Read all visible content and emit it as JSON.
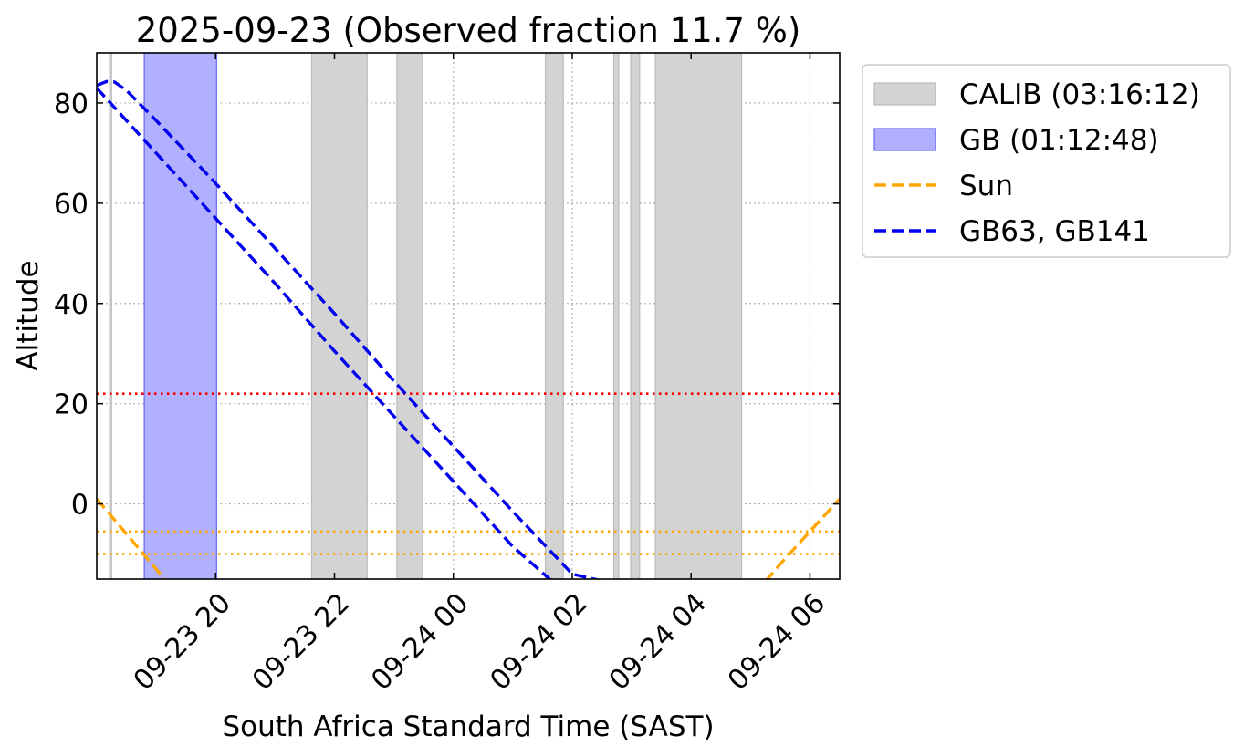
{
  "chart_data": {
    "type": "line",
    "title": "2025-09-23 (Observed fraction 11.7 %)",
    "xlabel": "South Africa Standard Time (SAST)",
    "ylabel": "Altitude",
    "x_unit": "datetime SAST",
    "xlim": [
      "2025-09-23 18:00",
      "2025-09-24 06:30"
    ],
    "ylim": [
      -15,
      90
    ],
    "x_ticks": [
      {
        "t": "2025-09-23 20:00",
        "label": "09-23 20"
      },
      {
        "t": "2025-09-23 22:00",
        "label": "09-23 22"
      },
      {
        "t": "2025-09-24 00:00",
        "label": "09-24 00"
      },
      {
        "t": "2025-09-24 02:00",
        "label": "09-24 02"
      },
      {
        "t": "2025-09-24 04:00",
        "label": "09-24 04"
      },
      {
        "t": "2025-09-24 06:00",
        "label": "09-24 06"
      }
    ],
    "y_ticks": [
      0,
      20,
      40,
      60,
      80
    ],
    "grid": true,
    "legend_position": "outside-top-right",
    "spans": [
      {
        "group": "CALIB",
        "start": "2025-09-23 18:13",
        "end": "2025-09-23 18:15"
      },
      {
        "group": "GB",
        "start": "2025-09-23 18:48",
        "end": "2025-09-23 20:01"
      },
      {
        "group": "CALIB",
        "start": "2025-09-23 21:37",
        "end": "2025-09-23 22:33"
      },
      {
        "group": "CALIB",
        "start": "2025-09-23 23:03",
        "end": "2025-09-23 23:29"
      },
      {
        "group": "CALIB",
        "start": "2025-09-24 01:33",
        "end": "2025-09-24 01:51"
      },
      {
        "group": "CALIB",
        "start": "2025-09-24 02:42",
        "end": "2025-09-24 02:47"
      },
      {
        "group": "CALIB",
        "start": "2025-09-24 02:59",
        "end": "2025-09-24 03:08"
      },
      {
        "group": "CALIB",
        "start": "2025-09-24 03:24",
        "end": "2025-09-24 04:51"
      }
    ],
    "series": [
      {
        "name": "Sun",
        "style": "dashed",
        "color": "#ffa500",
        "points": [
          [
            "2025-09-23 18:00",
            1
          ],
          [
            "2025-09-23 18:30",
            -6
          ],
          [
            "2025-09-23 19:00",
            -13
          ],
          [
            "2025-09-23 19:10",
            -15.5
          ]
        ]
      },
      {
        "name": "Sun",
        "style": "dashed",
        "color": "#ffa500",
        "legend": false,
        "points": [
          [
            "2025-09-24 05:15",
            -15.5
          ],
          [
            "2025-09-24 05:30",
            -12
          ],
          [
            "2025-09-24 06:00",
            -5.5
          ],
          [
            "2025-09-24 06:30",
            1
          ]
        ]
      },
      {
        "name": "GB63, GB141",
        "style": "dashed",
        "color": "#0000ee",
        "points": [
          [
            "2025-09-23 18:00",
            83.5
          ],
          [
            "2025-09-23 18:10",
            84.3
          ],
          [
            "2025-09-23 18:18",
            84.2
          ],
          [
            "2025-09-23 18:30",
            82.5
          ],
          [
            "2025-09-23 19:00",
            76.5
          ],
          [
            "2025-09-23 20:00",
            64
          ],
          [
            "2025-09-23 21:00",
            51
          ],
          [
            "2025-09-23 22:00",
            38
          ],
          [
            "2025-09-23 23:00",
            24.5
          ],
          [
            "2025-09-24 00:00",
            11.5
          ],
          [
            "2025-09-24 01:00",
            -1.5
          ],
          [
            "2025-09-24 02:00",
            -14
          ],
          [
            "2025-09-24 02:33",
            -15.5
          ]
        ]
      },
      {
        "name": "GB63, GB141",
        "style": "dashed",
        "color": "#0000ee",
        "legend": false,
        "points": [
          [
            "2025-09-23 18:00",
            83
          ],
          [
            "2025-09-23 19:00",
            70
          ],
          [
            "2025-09-23 20:00",
            57
          ],
          [
            "2025-09-23 21:00",
            44
          ],
          [
            "2025-09-23 22:00",
            30.5
          ],
          [
            "2025-09-23 23:00",
            17.5
          ],
          [
            "2025-09-24 00:00",
            4.5
          ],
          [
            "2025-09-24 01:00",
            -8.5
          ],
          [
            "2025-09-24 01:40",
            -15.5
          ]
        ]
      }
    ],
    "hlines": [
      {
        "y": 22,
        "color": "#ff0000",
        "style": "dotted"
      },
      {
        "y": -5.5,
        "color": "#ffa500",
        "style": "dotted"
      },
      {
        "y": -10,
        "color": "#ffa500",
        "style": "dotted"
      }
    ],
    "legend": [
      {
        "label": "CALIB (03:16:12)",
        "kind": "patch",
        "color": "#d3d3d3"
      },
      {
        "label": "GB (01:12:48)",
        "kind": "patch",
        "color": "#b0b0ff"
      },
      {
        "label": "Sun",
        "kind": "line",
        "color": "#ffa500"
      },
      {
        "label": "GB63, GB141",
        "kind": "line",
        "color": "#0000ee"
      }
    ]
  }
}
